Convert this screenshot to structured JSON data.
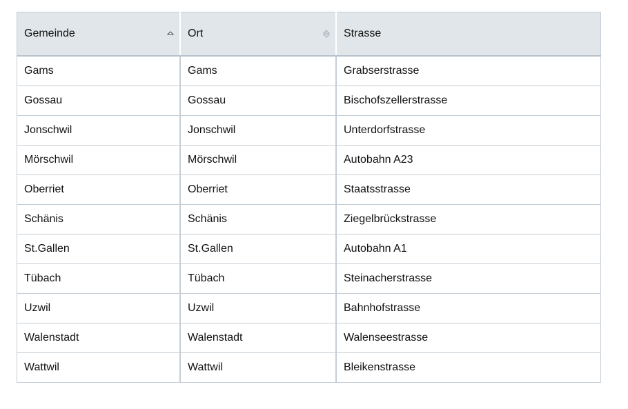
{
  "columns": [
    {
      "label": "Gemeinde",
      "sort": "ascending",
      "sort_icon": "sort-up-icon"
    },
    {
      "label": "Ort",
      "sort": "none",
      "sort_icon": "sort-both-icon"
    },
    {
      "label": "Strasse",
      "sort": "none"
    }
  ],
  "rows": [
    [
      "Gams",
      "Gams",
      "Grabserstrasse"
    ],
    [
      "Gossau",
      "Gossau",
      "Bischofszellerstrasse"
    ],
    [
      "Jonschwil",
      "Jonschwil",
      "Unterdorfstrasse"
    ],
    [
      "Mörschwil",
      "Mörschwil",
      "Autobahn A23"
    ],
    [
      "Oberriet",
      "Oberriet",
      "Staatsstrasse"
    ],
    [
      "Schänis",
      "Schänis",
      "Ziegelbrückstrasse"
    ],
    [
      "St.Gallen",
      "St.Gallen",
      "Autobahn A1"
    ],
    [
      "Tübach",
      "Tübach",
      "Steinacherstrasse"
    ],
    [
      "Uzwil",
      "Uzwil",
      "Bahnhofstrasse"
    ],
    [
      "Walenstadt",
      "Walenstadt",
      "Walenseestrasse"
    ],
    [
      "Wattwil",
      "Wattwil",
      "Bleikenstrasse"
    ]
  ]
}
